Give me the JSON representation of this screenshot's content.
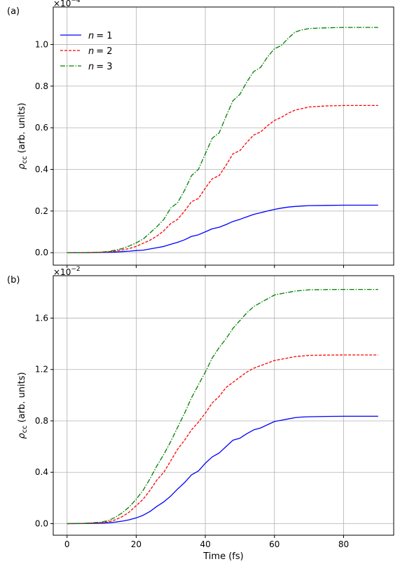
{
  "chart_data": [
    {
      "type": "line",
      "panel_label": "(a)",
      "multiplier": "×10",
      "multiplier_exp": "−4",
      "ylabel_main": "ρ",
      "ylabel_sub": "cc",
      "ylabel_units": "(arb. units)",
      "xlabel": "",
      "xlim": [
        -4,
        94.5
      ],
      "ylim": [
        -0.06,
        1.18
      ],
      "y_ticks": [
        0.0,
        0.2,
        0.4,
        0.6,
        0.8,
        1.0
      ],
      "y_tick_labels": [
        "0.0",
        "0.2",
        "0.4",
        "0.6",
        "0.8",
        "1.0"
      ],
      "x_ticks": [
        0,
        20,
        40,
        60,
        80
      ],
      "x_tick_labels": [
        "",
        "",
        "",
        "",
        ""
      ],
      "grid": true,
      "legend": "top-left",
      "series": [
        {
          "name_var": "n",
          "name_val": "= 1",
          "color": "#0000ff",
          "dash": "",
          "x": [
            0,
            5,
            10,
            12,
            14,
            16,
            18,
            20,
            22,
            24,
            26,
            28,
            30,
            32,
            34,
            36,
            38,
            40,
            42,
            44,
            46,
            48,
            50,
            52,
            54,
            56,
            58,
            60,
            62,
            64,
            66,
            68,
            70,
            75,
            80,
            85,
            90
          ],
          "y": [
            0,
            0,
            0.001,
            0.002,
            0.003,
            0.005,
            0.007,
            0.01,
            0.012,
            0.018,
            0.024,
            0.03,
            0.04,
            0.05,
            0.062,
            0.078,
            0.086,
            0.1,
            0.115,
            0.122,
            0.135,
            0.15,
            0.16,
            0.172,
            0.184,
            0.192,
            0.2,
            0.208,
            0.214,
            0.219,
            0.222,
            0.224,
            0.226,
            0.227,
            0.228,
            0.228,
            0.228
          ]
        },
        {
          "name_var": "n",
          "name_val": "= 2",
          "color": "#ff0000",
          "dash": "4,2",
          "x": [
            0,
            5,
            10,
            12,
            14,
            16,
            18,
            20,
            22,
            24,
            26,
            28,
            30,
            32,
            34,
            36,
            38,
            40,
            42,
            44,
            46,
            48,
            50,
            52,
            54,
            56,
            58,
            60,
            62,
            64,
            66,
            68,
            70,
            75,
            80,
            85,
            90
          ],
          "y": [
            0,
            0,
            0.002,
            0.004,
            0.008,
            0.013,
            0.02,
            0.03,
            0.045,
            0.06,
            0.08,
            0.105,
            0.14,
            0.16,
            0.2,
            0.245,
            0.26,
            0.31,
            0.355,
            0.37,
            0.42,
            0.475,
            0.49,
            0.53,
            0.565,
            0.58,
            0.61,
            0.635,
            0.65,
            0.67,
            0.685,
            0.692,
            0.7,
            0.705,
            0.707,
            0.707,
            0.707
          ]
        },
        {
          "name_var": "n",
          "name_val": "= 3",
          "color": "#008000",
          "dash": "7,2,1.5,2",
          "x": [
            0,
            5,
            10,
            12,
            14,
            16,
            18,
            20,
            22,
            24,
            26,
            28,
            30,
            32,
            34,
            36,
            38,
            40,
            42,
            44,
            46,
            48,
            50,
            52,
            54,
            56,
            58,
            60,
            62,
            64,
            66,
            68,
            70,
            75,
            80,
            85,
            90
          ],
          "y": [
            0,
            0,
            0.003,
            0.006,
            0.012,
            0.02,
            0.032,
            0.047,
            0.065,
            0.095,
            0.125,
            0.16,
            0.215,
            0.24,
            0.3,
            0.37,
            0.4,
            0.475,
            0.55,
            0.575,
            0.655,
            0.73,
            0.76,
            0.82,
            0.87,
            0.89,
            0.94,
            0.98,
            0.995,
            1.03,
            1.06,
            1.07,
            1.077,
            1.08,
            1.082,
            1.082,
            1.082
          ]
        }
      ]
    },
    {
      "type": "line",
      "panel_label": "(b)",
      "multiplier": "×10",
      "multiplier_exp": "−2",
      "ylabel_main": "ρ",
      "ylabel_sub": "cc",
      "ylabel_units": "(arb. units)",
      "xlabel": "Time (fs)",
      "xlim": [
        -4,
        94.5
      ],
      "ylim": [
        -0.09,
        1.93
      ],
      "y_ticks": [
        0.0,
        0.4,
        0.8,
        1.2,
        1.6
      ],
      "y_tick_labels": [
        "0.0",
        "0.4",
        "0.8",
        "1.2",
        "1.6"
      ],
      "x_ticks": [
        0,
        20,
        40,
        60,
        80
      ],
      "x_tick_labels": [
        "0",
        "20",
        "40",
        "60",
        "80"
      ],
      "grid": true,
      "legend": "none",
      "series": [
        {
          "name_var": "n",
          "name_val": "= 1",
          "color": "#0000ff",
          "dash": "",
          "x": [
            0,
            5,
            10,
            12,
            14,
            16,
            18,
            20,
            22,
            24,
            26,
            28,
            30,
            32,
            34,
            36,
            38,
            40,
            42,
            44,
            46,
            48,
            50,
            52,
            54,
            56,
            58,
            60,
            62,
            64,
            66,
            68,
            70,
            75,
            80,
            85,
            90
          ],
          "y": [
            0,
            0.001,
            0.004,
            0.007,
            0.012,
            0.02,
            0.03,
            0.045,
            0.065,
            0.095,
            0.135,
            0.17,
            0.215,
            0.27,
            0.32,
            0.38,
            0.41,
            0.47,
            0.52,
            0.55,
            0.6,
            0.65,
            0.665,
            0.7,
            0.73,
            0.745,
            0.77,
            0.795,
            0.805,
            0.815,
            0.825,
            0.83,
            0.832,
            0.835,
            0.836,
            0.836,
            0.836
          ]
        },
        {
          "name_var": "n",
          "name_val": "= 2",
          "color": "#ff0000",
          "dash": "4,2",
          "x": [
            0,
            5,
            10,
            12,
            14,
            16,
            18,
            20,
            22,
            24,
            26,
            28,
            30,
            32,
            34,
            36,
            38,
            40,
            42,
            44,
            46,
            48,
            50,
            52,
            54,
            56,
            58,
            60,
            62,
            64,
            66,
            68,
            70,
            75,
            80,
            85,
            90
          ],
          "y": [
            0,
            0.001,
            0.008,
            0.015,
            0.03,
            0.055,
            0.09,
            0.14,
            0.19,
            0.26,
            0.34,
            0.4,
            0.49,
            0.58,
            0.65,
            0.73,
            0.79,
            0.86,
            0.94,
            0.99,
            1.06,
            1.1,
            1.14,
            1.18,
            1.21,
            1.23,
            1.25,
            1.27,
            1.28,
            1.29,
            1.3,
            1.305,
            1.31,
            1.312,
            1.313,
            1.313,
            1.313
          ]
        },
        {
          "name_var": "n",
          "name_val": "= 3",
          "color": "#008000",
          "dash": "7,2,1.5,2",
          "x": [
            0,
            5,
            10,
            12,
            14,
            16,
            18,
            20,
            22,
            24,
            26,
            28,
            30,
            32,
            34,
            36,
            38,
            40,
            42,
            44,
            46,
            48,
            50,
            52,
            54,
            56,
            58,
            60,
            62,
            64,
            66,
            68,
            70,
            75,
            80,
            85,
            90
          ],
          "y": [
            0,
            0.002,
            0.012,
            0.025,
            0.05,
            0.085,
            0.13,
            0.19,
            0.26,
            0.35,
            0.45,
            0.54,
            0.64,
            0.75,
            0.86,
            0.98,
            1.08,
            1.18,
            1.29,
            1.37,
            1.44,
            1.52,
            1.58,
            1.64,
            1.69,
            1.72,
            1.75,
            1.78,
            1.79,
            1.8,
            1.81,
            1.815,
            1.82,
            1.822,
            1.823,
            1.823,
            1.823
          ]
        }
      ]
    }
  ]
}
